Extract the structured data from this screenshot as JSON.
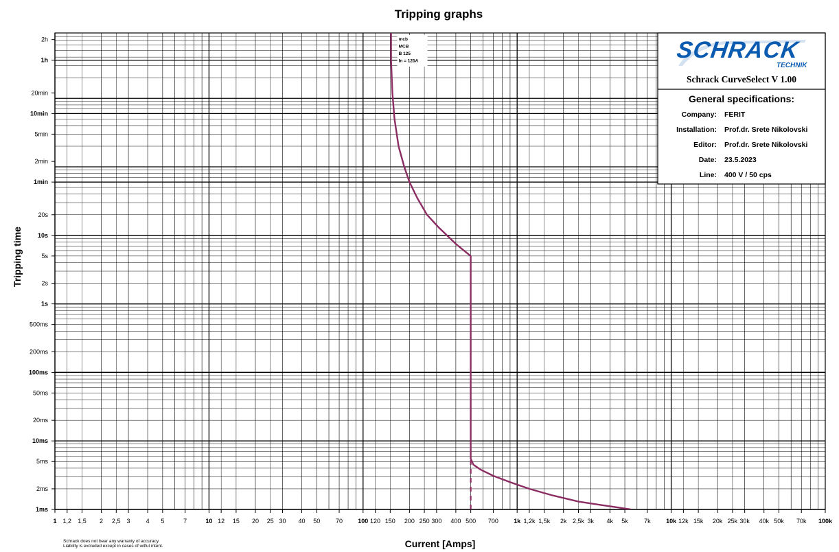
{
  "chart_data": {
    "type": "line",
    "title": "Tripping graphs",
    "xlabel": "Current [Amps]",
    "ylabel": "Tripping time",
    "x_scale": "log",
    "y_scale": "log",
    "xlim": [
      1,
      100000
    ],
    "ylim_seconds": [
      0.001,
      9000
    ],
    "x_ticks": [
      {
        "v": 1,
        "label": "1",
        "bold": true
      },
      {
        "v": 1.2,
        "label": "1,2"
      },
      {
        "v": 1.5,
        "label": "1,5"
      },
      {
        "v": 2,
        "label": "2"
      },
      {
        "v": 2.5,
        "label": "2,5"
      },
      {
        "v": 3,
        "label": "3"
      },
      {
        "v": 4,
        "label": "4"
      },
      {
        "v": 5,
        "label": "5"
      },
      {
        "v": 7,
        "label": "7"
      },
      {
        "v": 10,
        "label": "10",
        "bold": true
      },
      {
        "v": 12,
        "label": "12"
      },
      {
        "v": 15,
        "label": "15"
      },
      {
        "v": 20,
        "label": "20"
      },
      {
        "v": 25,
        "label": "25"
      },
      {
        "v": 30,
        "label": "30"
      },
      {
        "v": 40,
        "label": "40"
      },
      {
        "v": 50,
        "label": "50"
      },
      {
        "v": 70,
        "label": "70"
      },
      {
        "v": 100,
        "label": "100",
        "bold": true
      },
      {
        "v": 120,
        "label": "120"
      },
      {
        "v": 150,
        "label": "150"
      },
      {
        "v": 200,
        "label": "200"
      },
      {
        "v": 250,
        "label": "250"
      },
      {
        "v": 300,
        "label": "300"
      },
      {
        "v": 400,
        "label": "400"
      },
      {
        "v": 500,
        "label": "500"
      },
      {
        "v": 700,
        "label": "700"
      },
      {
        "v": 1000,
        "label": "1k",
        "bold": true
      },
      {
        "v": 1200,
        "label": "1,2k"
      },
      {
        "v": 1500,
        "label": "1,5k"
      },
      {
        "v": 2000,
        "label": "2k"
      },
      {
        "v": 2500,
        "label": "2,5k"
      },
      {
        "v": 3000,
        "label": "3k"
      },
      {
        "v": 4000,
        "label": "4k"
      },
      {
        "v": 5000,
        "label": "5k"
      },
      {
        "v": 7000,
        "label": "7k"
      },
      {
        "v": 10000,
        "label": "10k",
        "bold": true
      },
      {
        "v": 12000,
        "label": "12k"
      },
      {
        "v": 15000,
        "label": "15k"
      },
      {
        "v": 20000,
        "label": "20k"
      },
      {
        "v": 25000,
        "label": "25k"
      },
      {
        "v": 30000,
        "label": "30k"
      },
      {
        "v": 40000,
        "label": "40k"
      },
      {
        "v": 50000,
        "label": "50k"
      },
      {
        "v": 70000,
        "label": "70k"
      },
      {
        "v": 100000,
        "label": "100k",
        "bold": true
      }
    ],
    "y_ticks": [
      {
        "v": 0.001,
        "label": "1ms",
        "bold": true
      },
      {
        "v": 0.002,
        "label": "2ms"
      },
      {
        "v": 0.005,
        "label": "5ms"
      },
      {
        "v": 0.01,
        "label": "10ms",
        "bold": true
      },
      {
        "v": 0.02,
        "label": "20ms"
      },
      {
        "v": 0.05,
        "label": "50ms"
      },
      {
        "v": 0.1,
        "label": "100ms",
        "bold": true
      },
      {
        "v": 0.2,
        "label": "200ms"
      },
      {
        "v": 0.5,
        "label": "500ms"
      },
      {
        "v": 1,
        "label": "1s",
        "bold": true
      },
      {
        "v": 2,
        "label": "2s"
      },
      {
        "v": 5,
        "label": "5s"
      },
      {
        "v": 10,
        "label": "10s",
        "bold": true
      },
      {
        "v": 20,
        "label": "20s"
      },
      {
        "v": 60,
        "label": "1min",
        "bold": true
      },
      {
        "v": 120,
        "label": "2min"
      },
      {
        "v": 300,
        "label": "5min"
      },
      {
        "v": 600,
        "label": "10min",
        "bold": true
      },
      {
        "v": 1200,
        "label": "20min"
      },
      {
        "v": 3600,
        "label": "1h",
        "bold": true
      },
      {
        "v": 7200,
        "label": "2h"
      }
    ],
    "grid": true,
    "series": [
      {
        "name": "mcb MCB B 125 In = 125A",
        "color": "#8b2d62",
        "x": [
          152,
          152,
          155,
          160,
          170,
          185,
          200,
          225,
          260,
          310,
          400,
          500,
          500,
          520,
          580,
          700,
          900,
          1200,
          1700,
          2500,
          3600,
          5500
        ],
        "y": [
          9000,
          3600,
          1200,
          500,
          200,
          100,
          60,
          35,
          20,
          13,
          7.5,
          5,
          0.0055,
          0.0045,
          0.0038,
          0.0031,
          0.0025,
          0.002,
          0.0016,
          0.0013,
          0.00115,
          0.001
        ]
      }
    ],
    "dashed_segment": {
      "x": 500,
      "y": [
        0.001,
        0.0055
      ]
    },
    "curve_label_lines": [
      "mcb",
      "MCB",
      "B 125",
      "In = 125A"
    ]
  },
  "brand": {
    "logo_name": "SCHRACK",
    "logo_sub": "TECHNIK",
    "product": "Schrack CurveSelect  V 1.00",
    "brand_color": "#0a5bb0"
  },
  "specs": {
    "title": "General specifications:",
    "rows": [
      {
        "label": "Company:",
        "value": "FERIT"
      },
      {
        "label": "Installation:",
        "value": "Prof.dr. Srete Nikolovski"
      },
      {
        "label": "Editor:",
        "value": "Prof.dr. Srete Nikolovski"
      },
      {
        "label": "Date:",
        "value": "23.5.2023"
      },
      {
        "label": "Line:",
        "value": "400 V / 50 cps"
      }
    ]
  },
  "disclaimer": [
    "Schrack does not bear any warranty of accuracy.",
    "Liability is excluded except in cases of wilful intent."
  ]
}
